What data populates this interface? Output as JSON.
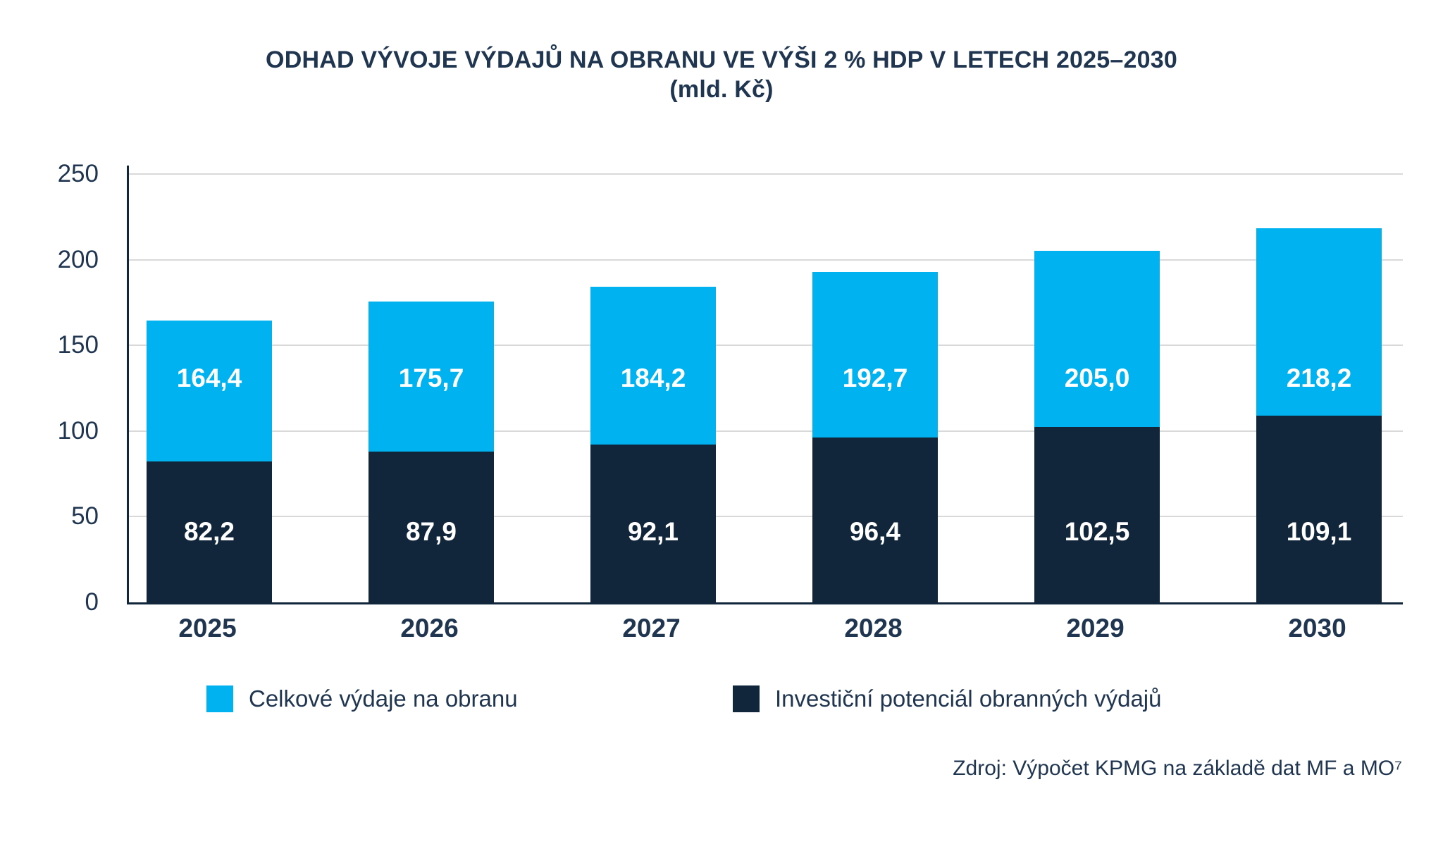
{
  "title": {
    "line1": "ODHAD VÝVOJE VÝDAJŮ NA OBRANU VE VÝŠI 2 % HDP V LETECH 2025–2030",
    "line2": "(mld. Kč)"
  },
  "source": "Zdroj: Výpočet KPMG na základě dat MF a MO⁷",
  "colors": {
    "total_blue": "#00B2F0",
    "investment_navy": "#12263B",
    "text_navy": "#203650",
    "gridline_gray": "#D9D9D9"
  },
  "legend": {
    "items": [
      {
        "label": "Celkové výdaje na obranu",
        "color": "#00B2F0"
      },
      {
        "label": "Investiční potenciál obranných výdajů",
        "color": "#12263B"
      }
    ]
  },
  "chart_data": {
    "type": "bar",
    "subtype": "stacked-overlay",
    "title": "ODHAD VÝVOJE VÝDAJŮ NA OBRANU VE VÝŠI 2 % HDP V LETECH 2025–2030",
    "subtitle": "(mld. Kč)",
    "categories": [
      "2025",
      "2026",
      "2027",
      "2028",
      "2029",
      "2030"
    ],
    "series": [
      {
        "name": "Celkové výdaje na obranu",
        "role": "total-bar-height",
        "color": "#00B2F0",
        "values": [
          164.4,
          175.7,
          184.2,
          192.7,
          205.0,
          218.2
        ],
        "labels": [
          "164,4",
          "175,7",
          "184,2",
          "192,7",
          "205,0",
          "218,2"
        ]
      },
      {
        "name": "Investiční potenciál obranných výdajů",
        "role": "bottom-segment",
        "color": "#12263B",
        "values": [
          82.2,
          87.9,
          92.1,
          96.4,
          102.5,
          109.1
        ],
        "labels": [
          "82,2",
          "87,9",
          "92,1",
          "96,4",
          "102,5",
          "109,1"
        ]
      }
    ],
    "ylim": [
      0,
      250
    ],
    "yticks": [
      0,
      50,
      100,
      150,
      200,
      250
    ],
    "xlabel": "",
    "ylabel": "",
    "grid": true,
    "legend_position": "bottom",
    "value_label_color": "#FFFFFF",
    "decimal_separator": ","
  }
}
